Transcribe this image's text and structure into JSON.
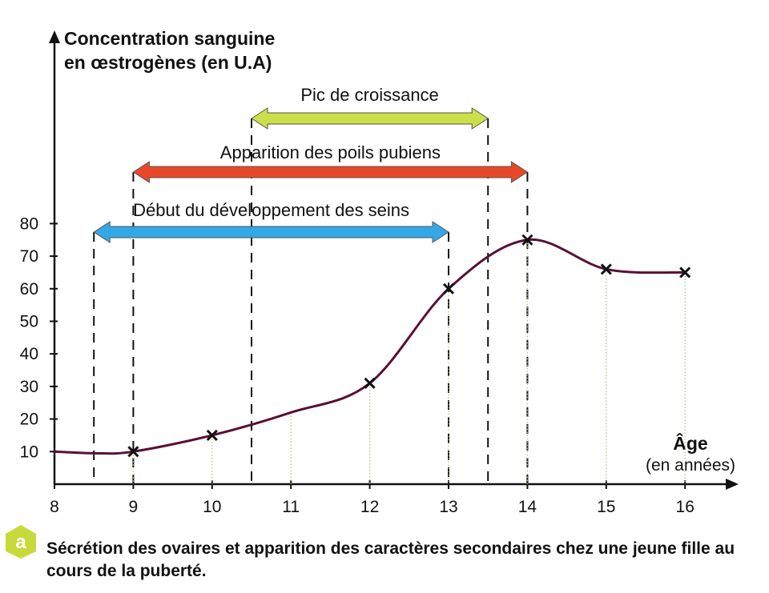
{
  "figure_letter": "a",
  "caption": "Sécrétion des ovaires et apparition des caractères secondaires chez une jeune fille au cours de la puberté.",
  "colors": {
    "curve": "#5a1035",
    "badge": "#c8d93b",
    "arrow_growth": "#c9e04a",
    "arrow_hair": "#e8482a",
    "arrow_breast": "#34a8e6"
  },
  "chart_data": {
    "type": "line",
    "ylabel_lines": [
      "Concentration sanguine",
      "en œstrogènes (en U.A)"
    ],
    "xlabel_lines": [
      "Âge",
      "(en années)"
    ],
    "xlim": [
      8,
      16.6
    ],
    "ylim": [
      0,
      80
    ],
    "x_ticks": [
      "8",
      "9",
      "10",
      "11",
      "12",
      "13",
      "14",
      "15",
      "16"
    ],
    "y_ticks": [
      "10",
      "20",
      "30",
      "40",
      "50",
      "60",
      "70",
      "80"
    ],
    "curve": {
      "x": [
        8,
        8.5,
        9,
        10,
        11,
        12,
        13,
        14,
        15,
        16
      ],
      "y": [
        10,
        9.5,
        10,
        15,
        22,
        31,
        60,
        75,
        66,
        65
      ]
    },
    "markers": {
      "x": [
        9,
        10,
        12,
        13,
        14,
        15,
        16
      ],
      "y": [
        10,
        15,
        31,
        60,
        75,
        66,
        65
      ]
    },
    "ranges": [
      {
        "label": "Pic de croissance",
        "start": 10.5,
        "end": 13.5,
        "color": "#c9e04a"
      },
      {
        "label": "Apparition des poils pubiens",
        "start": 9,
        "end": 14,
        "color": "#e8482a"
      },
      {
        "label": "Début du développement des seins",
        "start": 8.5,
        "end": 13,
        "color": "#34a8e6"
      }
    ]
  }
}
